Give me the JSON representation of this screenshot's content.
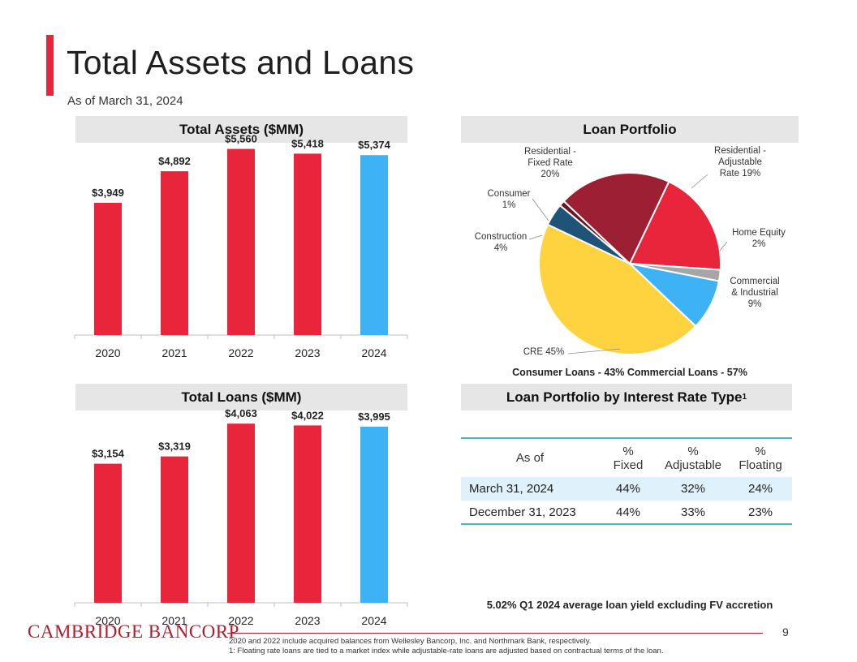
{
  "page": {
    "title": "Total Assets and Loans",
    "subtitle": "As of March 31, 2024",
    "page_number": "9",
    "logo_text": "CAMBRIDGE BANCORP",
    "footnotes": [
      "2020 and 2022 include acquired balances from Wellesley Bancorp, Inc. and Northmark Bank, respectively.",
      "1: Floating rate loans are tied to a market index while adjustable-rate loans are adjusted based on contractual terms of the loan."
    ],
    "colors": {
      "accent": "#e8253a",
      "highlight": "#3db3f5",
      "header_bg": "#e7e6e6"
    }
  },
  "chart_data": [
    {
      "id": "total-assets",
      "type": "bar",
      "title": "Total Assets ($MM)",
      "categories": [
        "2020",
        "2021",
        "2022",
        "2023",
        "2024"
      ],
      "values": [
        3949,
        4892,
        5560,
        5418,
        5374
      ],
      "labels": [
        "$3,949",
        "$4,892",
        "$5,560",
        "$5,418",
        "$5,374"
      ],
      "colors": [
        "#e8253a",
        "#e8253a",
        "#e8253a",
        "#e8253a",
        "#3db3f5"
      ],
      "ylim": [
        0,
        6300
      ],
      "xlabel": "",
      "ylabel": ""
    },
    {
      "id": "total-loans",
      "type": "bar",
      "title": "Total Loans ($MM)",
      "categories": [
        "2020",
        "2021",
        "2022",
        "2023",
        "2024"
      ],
      "values": [
        3154,
        3319,
        4063,
        4022,
        3995
      ],
      "labels": [
        "$3,154",
        "$3,319",
        "$4,063",
        "$4,022",
        "$3,995"
      ],
      "colors": [
        "#e8253a",
        "#e8253a",
        "#e8253a",
        "#e8253a",
        "#3db3f5"
      ],
      "ylim": [
        0,
        4600
      ],
      "xlabel": "",
      "ylabel": ""
    },
    {
      "id": "loan-portfolio",
      "type": "pie",
      "title": "Loan Portfolio",
      "slices": [
        {
          "name": "Residential - Adjustable Rate",
          "value": 19,
          "label": [
            "Residential -",
            "Adjustable",
            "Rate 19%"
          ],
          "color": "#e8253a"
        },
        {
          "name": "Home Equity",
          "value": 2,
          "label": [
            "Home Equity",
            "2%"
          ],
          "color": "#a6a6a6"
        },
        {
          "name": "Commercial & Industrial",
          "value": 9,
          "label": [
            "Commercial",
            "& Industrial",
            "9%"
          ],
          "color": "#3db3f5"
        },
        {
          "name": "CRE",
          "value": 45,
          "label": [
            "CRE  45%"
          ],
          "color": "#ffd23f"
        },
        {
          "name": "Construction",
          "value": 4,
          "label": [
            "Construction",
            "4%"
          ],
          "color": "#1f5478"
        },
        {
          "name": "Consumer",
          "value": 1,
          "label": [
            "Consumer",
            "1%"
          ],
          "color": "#6b1520"
        },
        {
          "name": "Residential - Fixed Rate",
          "value": 20,
          "label": [
            "Residential -",
            "Fixed Rate",
            "20%"
          ],
          "color": "#9d1f33"
        }
      ],
      "caption": "Consumer Loans - 43% Commercial Loans - 57%"
    }
  ],
  "rate_table": {
    "title": "Loan Portfolio by Interest Rate Type",
    "title_superscript": "1",
    "headers": {
      "as_of": "As of",
      "fixed": [
        "%",
        "Fixed"
      ],
      "adjustable": [
        "%",
        "Adjustable"
      ],
      "floating": [
        "%",
        "Floating"
      ]
    },
    "rows": [
      {
        "as_of": "March 31, 2024",
        "fixed": "44%",
        "adjustable": "32%",
        "floating": "24%"
      },
      {
        "as_of": "December 31, 2023",
        "fixed": "44%",
        "adjustable": "33%",
        "floating": "23%"
      }
    ]
  },
  "yield_note": "5.02% Q1 2024 average loan yield excluding FV accretion"
}
